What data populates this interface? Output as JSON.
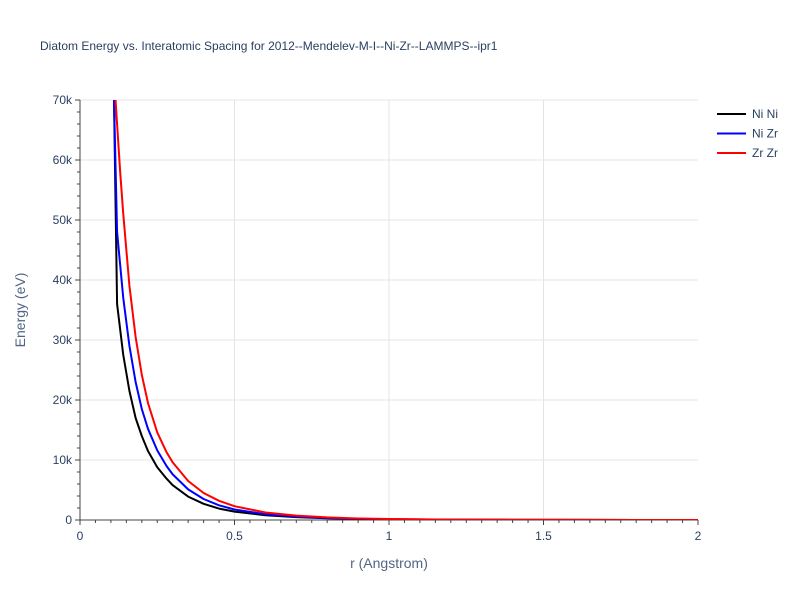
{
  "chart_data": {
    "type": "line",
    "title": "Diatom Energy vs. Interatomic Spacing for 2012--Mendelev-M-I--Ni-Zr--LAMMPS--ipr1",
    "xlabel": "r (Angstrom)",
    "ylabel": "Energy (eV)",
    "xlim": [
      0,
      2
    ],
    "ylim": [
      0,
      70000
    ],
    "x_ticks": [
      0,
      0.5,
      1,
      1.5,
      2
    ],
    "x_tick_labels": [
      "0",
      "0.5",
      "1",
      "1.5",
      "2"
    ],
    "y_ticks": [
      0,
      10000,
      20000,
      30000,
      40000,
      50000,
      60000,
      70000
    ],
    "y_tick_labels": [
      "0",
      "10k",
      "20k",
      "30k",
      "40k",
      "50k",
      "60k",
      "70k"
    ],
    "grid": true,
    "legend_position": "top-right",
    "series": [
      {
        "name": "Ni Ni",
        "color": "#000000",
        "x": [
          0.11,
          0.12,
          0.14,
          0.16,
          0.18,
          0.2,
          0.22,
          0.25,
          0.28,
          0.3,
          0.35,
          0.4,
          0.45,
          0.5,
          0.6,
          0.7,
          0.8,
          0.9,
          1.0,
          1.2,
          1.4,
          1.6,
          1.8,
          2.0
        ],
        "y": [
          70000,
          36000,
          27500,
          21500,
          17000,
          14000,
          11500,
          8800,
          6900,
          5800,
          3900,
          2700,
          1900,
          1400,
          800,
          480,
          290,
          180,
          110,
          50,
          25,
          12,
          6,
          3
        ]
      },
      {
        "name": "Ni Zr",
        "color": "#0000ff",
        "x": [
          0.11,
          0.12,
          0.14,
          0.16,
          0.18,
          0.2,
          0.22,
          0.25,
          0.28,
          0.3,
          0.35,
          0.4,
          0.45,
          0.5,
          0.6,
          0.7,
          0.8,
          0.9,
          1.0,
          1.2,
          1.4,
          1.6,
          1.8,
          2.0
        ],
        "y": [
          70000,
          48000,
          37000,
          29000,
          23000,
          18500,
          15200,
          11600,
          9000,
          7600,
          5100,
          3500,
          2450,
          1750,
          950,
          560,
          340,
          210,
          130,
          60,
          30,
          15,
          8,
          4
        ]
      },
      {
        "name": "Zr Zr",
        "color": "#ff0000",
        "x": [
          0.115,
          0.12,
          0.13,
          0.14,
          0.16,
          0.18,
          0.2,
          0.22,
          0.25,
          0.28,
          0.3,
          0.35,
          0.4,
          0.45,
          0.5,
          0.6,
          0.7,
          0.8,
          0.9,
          1.0,
          1.2,
          1.4,
          1.6,
          1.8,
          2.0
        ],
        "y": [
          70000,
          66000,
          58000,
          51000,
          39000,
          30500,
          24200,
          19500,
          14600,
          11300,
          9600,
          6500,
          4500,
          3200,
          2300,
          1250,
          720,
          430,
          260,
          160,
          70,
          35,
          17,
          9,
          5
        ]
      }
    ]
  }
}
